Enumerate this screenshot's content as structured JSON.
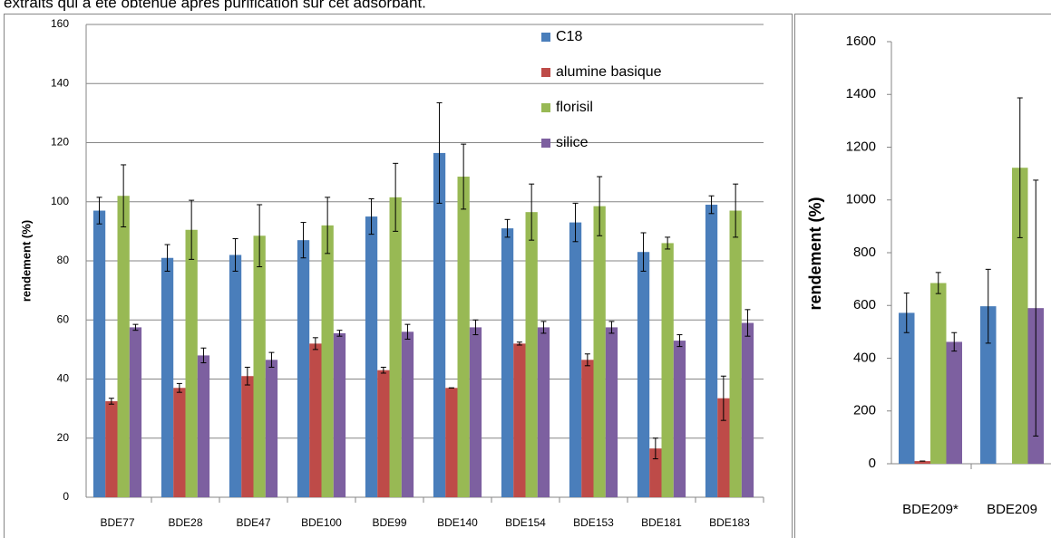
{
  "caption": "extraits qui a été obtenue après purification sur cet adsorbant.",
  "chart_data": [
    {
      "type": "bar",
      "y_label": "rendement (%)",
      "categories": [
        "BDE77",
        "BDE28",
        "BDE47",
        "BDE100",
        "BDE99",
        "BDE140",
        "BDE154",
        "BDE153",
        "BDE181",
        "BDE183"
      ],
      "series": [
        {
          "name": "C18",
          "color": "#4a7ebb",
          "values": [
            97,
            81,
            82,
            87,
            95,
            116.5,
            91,
            93,
            83,
            99
          ],
          "errors": [
            4.5,
            4.5,
            5.5,
            6,
            6,
            17,
            3,
            6.5,
            6.5,
            3
          ]
        },
        {
          "name": "alumine basique",
          "color": "#be4b48",
          "values": [
            32.5,
            37,
            41,
            52,
            43,
            37,
            52,
            46.5,
            16.5,
            33.5
          ],
          "errors": [
            1,
            1.5,
            3,
            2,
            1,
            0,
            0.5,
            2,
            3.5,
            7.5
          ]
        },
        {
          "name": "florisil",
          "color": "#98b954",
          "values": [
            102,
            90.5,
            88.5,
            92,
            101.5,
            108.5,
            96.5,
            98.5,
            86,
            97
          ],
          "errors": [
            10.5,
            10,
            10.5,
            9.5,
            11.5,
            11,
            9.5,
            10,
            2,
            9
          ]
        },
        {
          "name": "silice",
          "color": "#7d60a0",
          "values": [
            57.5,
            48,
            46.5,
            55.5,
            56,
            57.5,
            57.5,
            57.5,
            53,
            59
          ],
          "errors": [
            1,
            2.5,
            2.5,
            1,
            2.5,
            2.5,
            2,
            2,
            2,
            4.5
          ]
        }
      ],
      "ylim": [
        0,
        160
      ],
      "yticks": [
        0,
        20,
        40,
        60,
        80,
        100,
        120,
        140,
        160
      ],
      "grid": true,
      "legend": "top-right"
    },
    {
      "type": "bar",
      "y_label": "rendement (%)",
      "categories": [
        "BDE209*",
        "BDE209"
      ],
      "series": [
        {
          "color": "#4a7ebb",
          "values": [
            572,
            597
          ],
          "errors": [
            75,
            140
          ]
        },
        {
          "color": "#be4b48",
          "values": [
            10,
            null
          ],
          "errors": [
            0,
            null
          ]
        },
        {
          "color": "#98b954",
          "values": [
            685,
            1122
          ],
          "errors": [
            40,
            265
          ]
        },
        {
          "color": "#7d60a0",
          "values": [
            462,
            590
          ],
          "errors": [
            35,
            485
          ]
        }
      ],
      "ylim": [
        0,
        1600
      ],
      "yticks": [
        0,
        200,
        400,
        600,
        800,
        1000,
        1200,
        1400,
        1600
      ],
      "grid": false
    }
  ]
}
